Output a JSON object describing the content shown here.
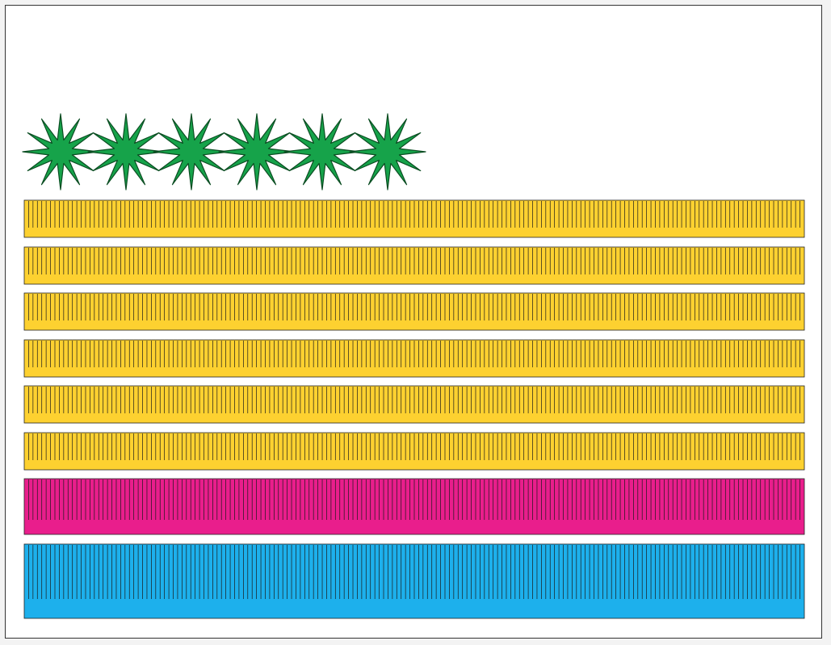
{
  "artwork": {
    "stars": {
      "count": 6,
      "points": 12,
      "fill": "#16a34a",
      "stroke": "#0b4d22"
    },
    "stripes": [
      {
        "color": "#fdd130",
        "ticks": 177
      },
      {
        "color": "#fdd130",
        "ticks": 177
      },
      {
        "color": "#fdd130",
        "ticks": 177
      },
      {
        "color": "#fdd130",
        "ticks": 177
      },
      {
        "color": "#fdd130",
        "ticks": 177
      },
      {
        "color": "#fdd130",
        "ticks": 177
      },
      {
        "color": "#e91e8c",
        "ticks": 177
      },
      {
        "color": "#1db0ec",
        "ticks": 177
      }
    ]
  }
}
